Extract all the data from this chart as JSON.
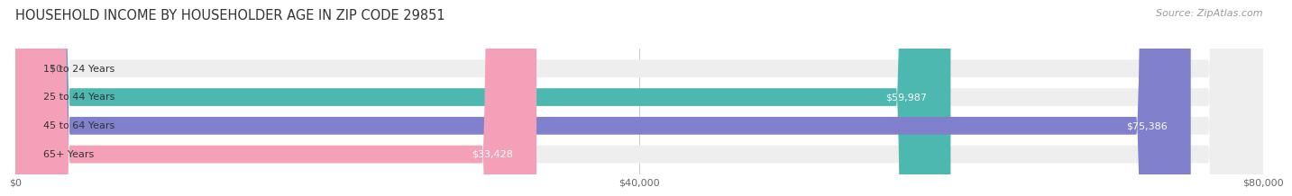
{
  "title": "HOUSEHOLD INCOME BY HOUSEHOLDER AGE IN ZIP CODE 29851",
  "source": "Source: ZipAtlas.com",
  "categories": [
    "15 to 24 Years",
    "25 to 44 Years",
    "45 to 64 Years",
    "65+ Years"
  ],
  "values": [
    0,
    59987,
    75386,
    33428
  ],
  "bar_colors": [
    "#c9a8d4",
    "#4db8b0",
    "#8080cc",
    "#f4a0b8"
  ],
  "bar_bg_color": "#eeeeee",
  "xlim": [
    0,
    80000
  ],
  "xticks": [
    0,
    40000,
    80000
  ],
  "xtick_labels": [
    "$0",
    "$40,000",
    "$80,000"
  ],
  "background_color": "#ffffff",
  "bar_height": 0.62,
  "title_fontsize": 10.5,
  "source_fontsize": 8,
  "label_fontsize": 8,
  "category_fontsize": 8,
  "value_labels": [
    "$0",
    "$59,987",
    "$75,386",
    "$33,428"
  ]
}
